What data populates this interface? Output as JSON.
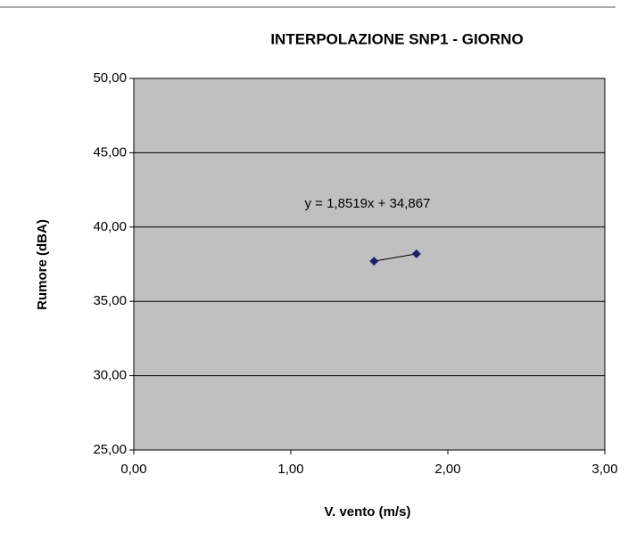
{
  "chart_data": {
    "type": "scatter",
    "title": "INTERPOLAZIONE SNP1 - GIORNO",
    "x_label": "V. vento (m/s)",
    "y_label": "Rumore (dBA)",
    "annotation": "y = 1,8519x + 34,867",
    "series": [
      {
        "color": "#1f1f6b",
        "x": [
          1.53,
          1.8
        ],
        "values": [
          37.7,
          38.2
        ]
      }
    ],
    "xlim": [
      0,
      3
    ],
    "xticks": [
      {
        "value": 0,
        "label": "0,00"
      },
      {
        "value": 1,
        "label": "1,00"
      },
      {
        "value": 2,
        "label": "2,00"
      },
      {
        "value": 3,
        "label": "3,00"
      }
    ],
    "ylim": [
      25,
      50
    ],
    "yticks": [
      {
        "value": 25,
        "label": "25,00"
      },
      {
        "value": 30,
        "label": "30,00"
      },
      {
        "value": 35,
        "label": "35,00"
      },
      {
        "value": 40,
        "label": "40,00"
      },
      {
        "value": 45,
        "label": "45,00"
      },
      {
        "value": 50,
        "label": "50,00"
      }
    ],
    "grid": true,
    "plot_background": "#c0c0c0"
  }
}
